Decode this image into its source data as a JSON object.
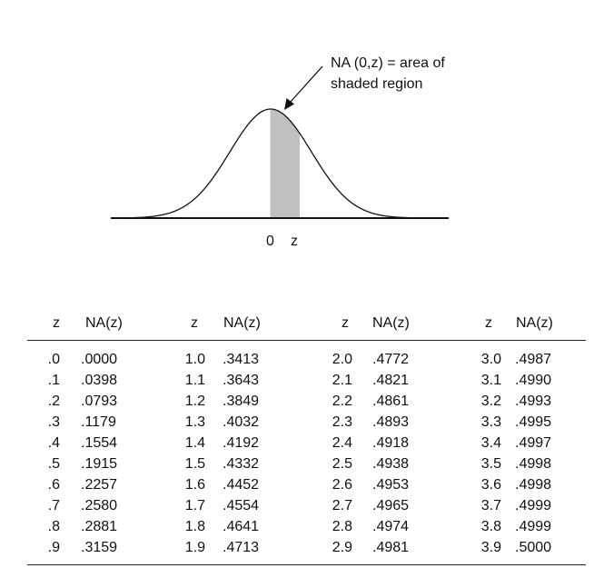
{
  "figure": {
    "annotation_line1": "NA (0,z) = area of",
    "annotation_line2": "shaded region",
    "axis_zero": "0",
    "axis_z": "z"
  },
  "table": {
    "headers": [
      {
        "z": "z",
        "na": "NA(z)"
      },
      {
        "z": "z",
        "na": "NA(z)"
      },
      {
        "z": "z",
        "na": "NA(z)"
      },
      {
        "z": "z",
        "na": "NA(z)"
      }
    ],
    "columns": [
      {
        "rows": [
          {
            "z": ".0",
            "na": ".0000"
          },
          {
            "z": ".1",
            "na": ".0398"
          },
          {
            "z": ".2",
            "na": ".0793"
          },
          {
            "z": ".3",
            "na": ".1179"
          },
          {
            "z": ".4",
            "na": ".1554"
          },
          {
            "z": ".5",
            "na": ".1915"
          },
          {
            "z": ".6",
            "na": ".2257"
          },
          {
            "z": ".7",
            "na": ".2580"
          },
          {
            "z": ".8",
            "na": ".2881"
          },
          {
            "z": ".9",
            "na": ".3159"
          }
        ]
      },
      {
        "rows": [
          {
            "z": "1.0",
            "na": ".3413"
          },
          {
            "z": "1.1",
            "na": ".3643"
          },
          {
            "z": "1.2",
            "na": ".3849"
          },
          {
            "z": "1.3",
            "na": ".4032"
          },
          {
            "z": "1.4",
            "na": ".4192"
          },
          {
            "z": "1.5",
            "na": ".4332"
          },
          {
            "z": "1.6",
            "na": ".4452"
          },
          {
            "z": "1.7",
            "na": ".4554"
          },
          {
            "z": "1.8",
            "na": ".4641"
          },
          {
            "z": "1.9",
            "na": ".4713"
          }
        ]
      },
      {
        "rows": [
          {
            "z": "2.0",
            "na": ".4772"
          },
          {
            "z": "2.1",
            "na": ".4821"
          },
          {
            "z": "2.2",
            "na": ".4861"
          },
          {
            "z": "2.3",
            "na": ".4893"
          },
          {
            "z": "2.4",
            "na": ".4918"
          },
          {
            "z": "2.5",
            "na": ".4938"
          },
          {
            "z": "2.6",
            "na": ".4953"
          },
          {
            "z": "2.7",
            "na": ".4965"
          },
          {
            "z": "2.8",
            "na": ".4974"
          },
          {
            "z": "2.9",
            "na": ".4981"
          }
        ]
      },
      {
        "rows": [
          {
            "z": "3.0",
            "na": ".4987"
          },
          {
            "z": "3.1",
            "na": ".4990"
          },
          {
            "z": "3.2",
            "na": ".4993"
          },
          {
            "z": "3.3",
            "na": ".4995"
          },
          {
            "z": "3.4",
            "na": ".4997"
          },
          {
            "z": "3.5",
            "na": ".4998"
          },
          {
            "z": "3.6",
            "na": ".4998"
          },
          {
            "z": "3.7",
            "na": ".4999"
          },
          {
            "z": "3.8",
            "na": ".4999"
          },
          {
            "z": "3.9",
            "na": ".5000"
          }
        ]
      }
    ]
  }
}
